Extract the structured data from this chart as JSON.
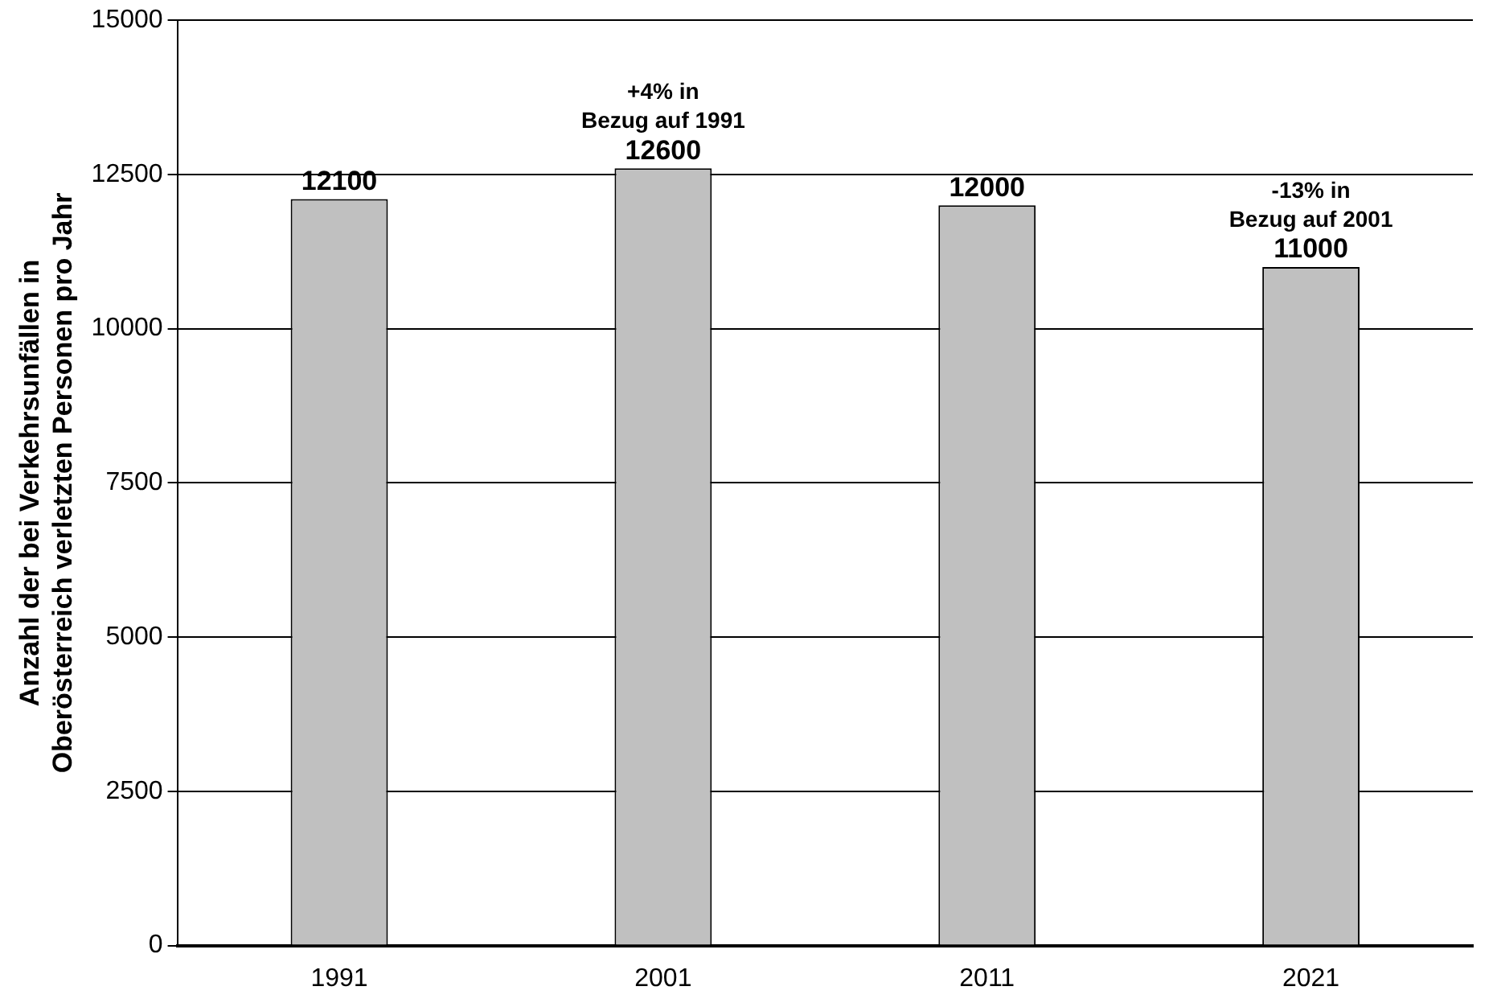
{
  "chart_data": {
    "type": "bar",
    "categories": [
      "1991",
      "2001",
      "2011",
      "2021"
    ],
    "values": [
      12100,
      12600,
      12000,
      11000
    ],
    "color": "#c0c0c0",
    "ylabel": "Anzahl der bei Verkehrsunfällen in\nOberösterreich verletzten Personen pro Jahr",
    "ylim": [
      0,
      15000
    ],
    "yticks": [
      0,
      2500,
      5000,
      7500,
      10000,
      12500,
      15000
    ],
    "grid": "y",
    "data_labels": true,
    "legend": false,
    "annotations": [
      {
        "text": "+4% in\nBezug auf 1991",
        "x": "2001",
        "y": 12600
      },
      {
        "text": "-13% in\nBezug auf 2001",
        "x": "2021",
        "y": 11000
      }
    ]
  }
}
